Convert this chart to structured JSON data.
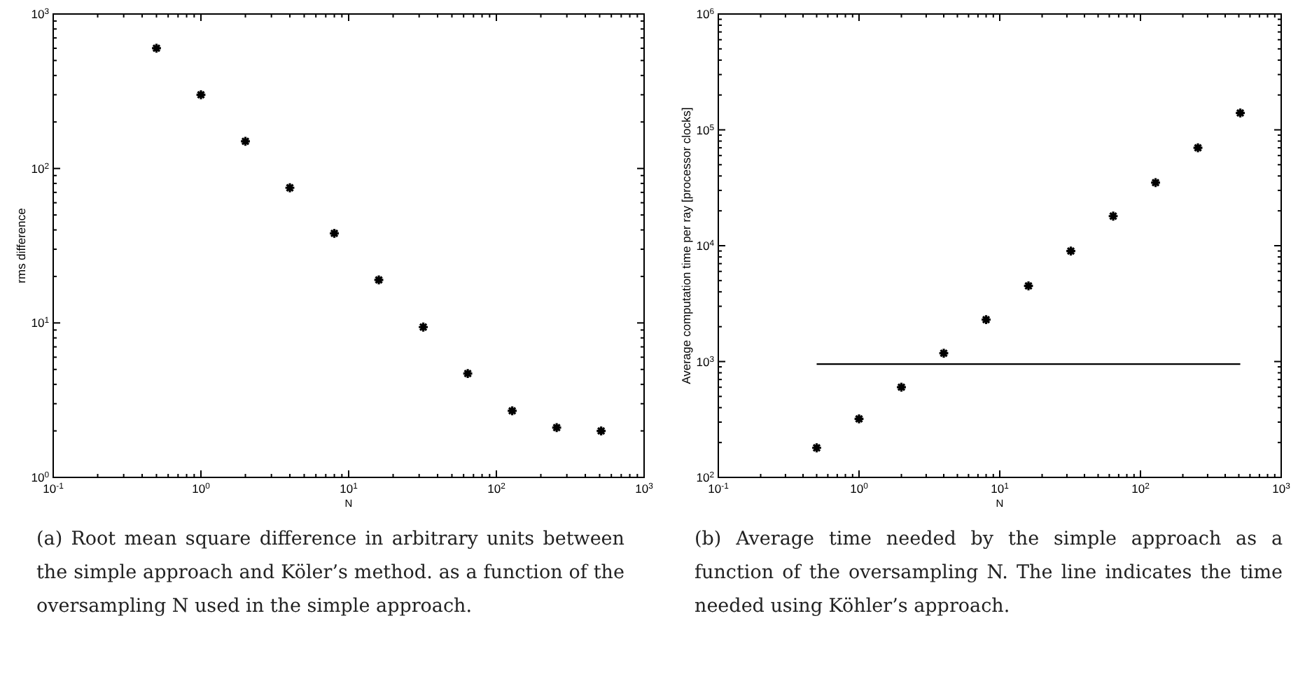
{
  "chart_data": [
    {
      "type": "scatter",
      "xlabel": "N",
      "ylabel": "rms difference",
      "log": "xy",
      "marker": "cross",
      "grid": false,
      "xlim": [
        0.1,
        1000
      ],
      "xticks": [
        {
          "value": 0.1,
          "label": "10$^{-1}$"
        },
        {
          "value": 1,
          "label": "10$^{0}$"
        },
        {
          "value": 10,
          "label": "10$^{1}$"
        },
        {
          "value": 100,
          "label": "10$^{2}$"
        },
        {
          "value": 1000,
          "label": "10$^{3}$"
        }
      ],
      "ylim": [
        1,
        1000
      ],
      "yticks": [
        {
          "value": 1,
          "label": "10$^{0}$"
        },
        {
          "value": 10,
          "label": "10$^{1}$"
        },
        {
          "value": 100,
          "label": "10$^{2}$"
        },
        {
          "value": 1000,
          "label": "10$^{3}$"
        }
      ],
      "x": [
        0.5,
        1,
        2,
        4,
        8,
        16,
        32,
        64,
        128,
        256,
        512
      ],
      "series": [
        {
          "color": "#000000",
          "values": [
            600,
            300,
            150,
            75,
            38,
            19,
            9.4,
            4.7,
            2.7,
            2.1,
            2.0
          ]
        }
      ],
      "annotations": [
        "(a) Root mean square difference in arbitrary units between the simple approach and Köler’s method.  as a function of the oversampling N used in the simple approach."
      ]
    },
    {
      "type": "scatter",
      "xlabel": "N",
      "ylabel": "Average computation time per ray [processor clocks]",
      "log": "xy",
      "marker": "cross",
      "grid": false,
      "xlim": [
        0.1,
        1000
      ],
      "xticks": [
        {
          "value": 0.1,
          "label": "10$^{-1}$"
        },
        {
          "value": 1,
          "label": "10$^{0}$"
        },
        {
          "value": 10,
          "label": "10$^{1}$"
        },
        {
          "value": 100,
          "label": "10$^{2}$"
        },
        {
          "value": 1000,
          "label": "10$^{3}$"
        }
      ],
      "ylim": [
        100,
        1000000
      ],
      "yticks": [
        {
          "value": 100,
          "label": "10$^{2}$"
        },
        {
          "value": 1000,
          "label": "10$^{3}$"
        },
        {
          "value": 10000,
          "label": "10$^{4}$"
        },
        {
          "value": 100000,
          "label": "10$^{5}$"
        },
        {
          "value": 1000000,
          "label": "10$^{6}$"
        }
      ],
      "x": [
        0.5,
        1,
        2,
        4,
        8,
        16,
        32,
        64,
        128,
        256,
        512
      ],
      "series": [
        {
          "color": "#000000",
          "values": [
            180,
            320,
            600,
            1180,
            2300,
            4500,
            9000,
            18000,
            35000,
            70000,
            140000
          ]
        },
        {
          "type": "line",
          "color": "#000000",
          "marker": "none",
          "x": [
            0.5,
            512
          ],
          "values": [
            950,
            950
          ]
        }
      ],
      "annotations": [
        "(b) Average time needed by the simple approach as a function of the oversampling N. The line indicates the time needed using Köhler’s approach."
      ]
    }
  ]
}
